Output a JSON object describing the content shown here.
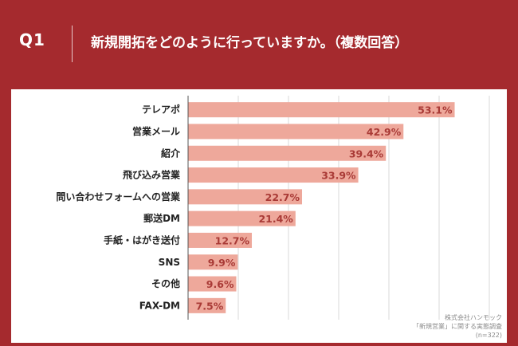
{
  "header": {
    "question_label": "Q1",
    "question_title": "新規開拓をどのように行っていますか。（複数回答）"
  },
  "source": {
    "line1": "株式会社ハンモック",
    "line2": "「新規営業」に関する実態調査",
    "line3": "(n=322)"
  },
  "colors": {
    "frame": "#a52a2e",
    "bar": "#eea89b",
    "value_text": "#a93a36"
  },
  "chart_data": {
    "type": "bar",
    "orientation": "horizontal",
    "categories": [
      "テレアポ",
      "営業メール",
      "紹介",
      "飛び込み営業",
      "問い合わせフォームへの営業",
      "郵送DM",
      "手紙・はがき送付",
      "SNS",
      "その他",
      "FAX-DM"
    ],
    "values": [
      53.1,
      42.9,
      39.4,
      33.9,
      22.7,
      21.4,
      12.7,
      9.9,
      9.6,
      7.5
    ],
    "value_labels": [
      "53.1%",
      "42.9%",
      "39.4%",
      "33.9%",
      "22.7%",
      "21.4%",
      "12.7%",
      "9.9%",
      "9.6%",
      "7.5%"
    ],
    "xlim": [
      0,
      60
    ],
    "grid": true
  }
}
